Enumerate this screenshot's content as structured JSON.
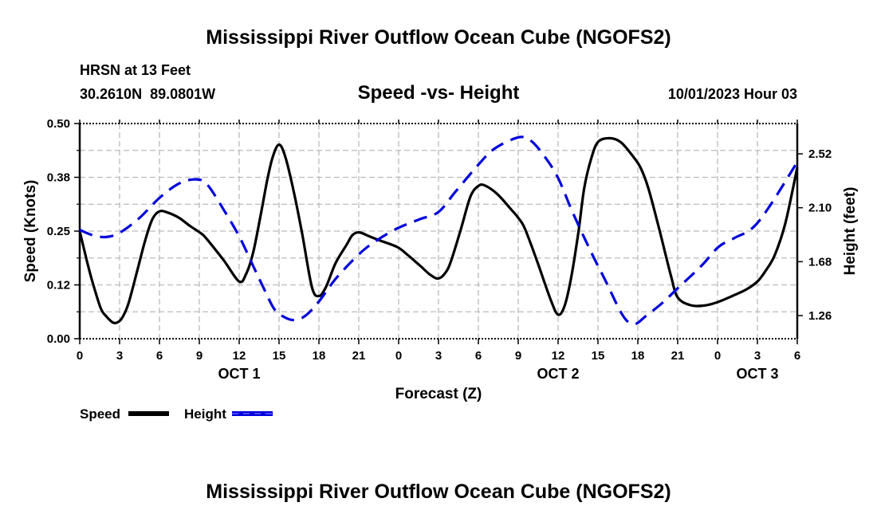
{
  "chart_data": {
    "type": "line",
    "title": "Mississippi River Outflow Ocean Cube (NGOFS2)",
    "subtitle": "Speed -vs- Height",
    "station": "HRSN at 13 Feet",
    "location": "30.2610N  89.0801W",
    "datetime": "10/01/2023 Hour 03",
    "footer_title": "Mississippi River Outflow Ocean Cube (NGOFS2)",
    "xlabel": "Forecast (Z)",
    "ylabel": "Speed (Knots)",
    "y2label": "Height (feet)",
    "xlim": [
      0,
      54
    ],
    "ylim": [
      0,
      0.5
    ],
    "y2lim": [
      1.08,
      2.756
    ],
    "grid": true,
    "x_ticks": [
      0,
      3,
      6,
      9,
      12,
      15,
      18,
      21,
      24,
      27,
      30,
      33,
      36,
      39,
      42,
      45,
      48,
      51,
      54
    ],
    "x_tick_labels": [
      "0",
      "3",
      "6",
      "9",
      "12",
      "15",
      "18",
      "21",
      "0",
      "3",
      "6",
      "9",
      "12",
      "15",
      "18",
      "21",
      "0",
      "3",
      "6"
    ],
    "day_labels": [
      {
        "hour": 12,
        "label": "OCT 1"
      },
      {
        "hour": 36,
        "label": "OCT 2"
      },
      {
        "hour": 51,
        "label": "OCT 3"
      }
    ],
    "y_ticks": [
      0,
      0.125,
      0.25,
      0.375,
      0.5
    ],
    "y_tick_labels": [
      "0.00",
      "0.12",
      "0.25",
      "0.38",
      "0.50"
    ],
    "y2_ticks": [
      1.26,
      1.68,
      2.1,
      2.52
    ],
    "y2_tick_labels": [
      "1.26",
      "1.68",
      "2.10",
      "2.52"
    ],
    "legend": {
      "placement": "bottom-left",
      "entries": [
        "Speed",
        "Height"
      ]
    },
    "series": [
      {
        "name": "Speed",
        "axis": "left",
        "color": "#000000",
        "style": "solid",
        "x": [
          0,
          0.53,
          0.95,
          1.58,
          2.0,
          2.53,
          2.95,
          3.26,
          3.68,
          4.32,
          4.95,
          5.47,
          6.0,
          6.63,
          7.47,
          8.3,
          9.16,
          9.58,
          10.84,
          12.0,
          12.53,
          13.05,
          13.58,
          14.1,
          14.53,
          15.0,
          15.47,
          16.1,
          16.74,
          17.47,
          18.0,
          18.53,
          19.26,
          20.1,
          20.53,
          21.05,
          21.79,
          22.6,
          23.9,
          24.7,
          25.6,
          26.4,
          27.0,
          27.54,
          27.96,
          28.7,
          29.4,
          30.0,
          30.5,
          31.43,
          32.48,
          33.0,
          33.5,
          34.4,
          35.45,
          36.0,
          36.5,
          37.0,
          37.54,
          37.96,
          38.48,
          39.0,
          39.85,
          40.7,
          41.5,
          42.2,
          42.8,
          43.6,
          44.5,
          45.0,
          45.96,
          47.0,
          48.0,
          49.1,
          50.2,
          51.0,
          51.6,
          52.3,
          53.1,
          54.0
        ],
        "values": [
          0.25,
          0.182,
          0.133,
          0.071,
          0.052,
          0.037,
          0.04,
          0.052,
          0.083,
          0.157,
          0.231,
          0.278,
          0.296,
          0.293,
          0.281,
          0.262,
          0.244,
          0.231,
          0.182,
          0.133,
          0.151,
          0.2,
          0.281,
          0.367,
          0.423,
          0.451,
          0.423,
          0.343,
          0.244,
          0.12,
          0.099,
          0.12,
          0.176,
          0.219,
          0.241,
          0.247,
          0.238,
          0.228,
          0.213,
          0.194,
          0.17,
          0.148,
          0.14,
          0.154,
          0.182,
          0.256,
          0.33,
          0.355,
          0.356,
          0.336,
          0.3,
          0.281,
          0.256,
          0.182,
          0.09,
          0.056,
          0.077,
          0.145,
          0.25,
          0.349,
          0.417,
          0.457,
          0.466,
          0.457,
          0.429,
          0.398,
          0.349,
          0.256,
          0.145,
          0.096,
          0.078,
          0.077,
          0.085,
          0.099,
          0.115,
          0.133,
          0.157,
          0.194,
          0.268,
          0.398
        ]
      },
      {
        "name": "Height",
        "axis": "right",
        "color": "#0000dd",
        "style": "dashed",
        "x": [
          0,
          0.95,
          2.0,
          3.05,
          4.5,
          6.0,
          7.5,
          8.76,
          9.6,
          10.84,
          12.0,
          12.95,
          13.8,
          14.6,
          15.26,
          16.1,
          16.95,
          18.0,
          19.26,
          20.95,
          22.2,
          23.9,
          25.6,
          27.0,
          28.3,
          30.0,
          31.2,
          33.0,
          33.96,
          35.0,
          36.0,
          37.1,
          38.4,
          39.6,
          40.9,
          41.75,
          42.6,
          43.85,
          45.0,
          46.8,
          48.06,
          49.3,
          50.6,
          51.87,
          54.0
        ],
        "values": [
          1.928,
          1.887,
          1.872,
          1.908,
          2.021,
          2.177,
          2.29,
          2.321,
          2.28,
          2.083,
          1.877,
          1.67,
          1.483,
          1.318,
          1.256,
          1.225,
          1.256,
          1.37,
          1.546,
          1.732,
          1.835,
          1.939,
          2.011,
          2.067,
          2.228,
          2.435,
          2.559,
          2.648,
          2.621,
          2.497,
          2.332,
          2.063,
          1.773,
          1.525,
          1.256,
          1.194,
          1.256,
          1.359,
          1.473,
          1.649,
          1.794,
          1.866,
          1.939,
          2.104,
          2.456
        ]
      }
    ]
  }
}
